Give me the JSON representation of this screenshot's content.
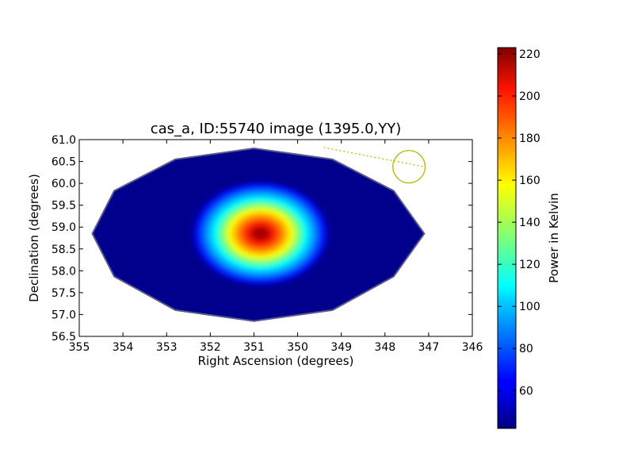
{
  "chart_data": {
    "type": "heatmap",
    "title": "cas_a, ID:55740 image (1395.0,YY)",
    "xlabel": "Right Ascension (degrees)",
    "ylabel": "Declination (degrees)",
    "xlim": [
      355,
      346
    ],
    "ylim": [
      56.5,
      61.0
    ],
    "xticks": [
      "355",
      "354",
      "353",
      "352",
      "351",
      "350",
      "349",
      "348",
      "347",
      "346"
    ],
    "yticks": [
      "56.5",
      "57.0",
      "57.5",
      "58.0",
      "58.5",
      "59.0",
      "59.5",
      "60.0",
      "60.5",
      "61.0"
    ],
    "xtick_values": [
      355,
      354,
      353,
      352,
      351,
      350,
      349,
      348,
      347,
      346
    ],
    "ytick_values": [
      56.5,
      57.0,
      57.5,
      58.0,
      58.5,
      59.0,
      59.5,
      60.0,
      60.5,
      61.0
    ],
    "grid": false,
    "colormap": "jet",
    "background_value": 45,
    "source": {
      "ra": 350.85,
      "dec": 58.85,
      "peak": 220
    },
    "footprint": [
      [
        354.7,
        58.85
      ],
      [
        354.2,
        59.83
      ],
      [
        352.8,
        60.55
      ],
      [
        351.0,
        60.8
      ],
      [
        349.2,
        60.55
      ],
      [
        347.8,
        59.83
      ],
      [
        347.1,
        58.85
      ],
      [
        347.8,
        57.87
      ],
      [
        349.2,
        57.1
      ],
      [
        351.0,
        56.85
      ],
      [
        352.8,
        57.1
      ],
      [
        354.2,
        57.87
      ]
    ],
    "annotation": {
      "circle_center": [
        347.45,
        60.38
      ],
      "circle_radius_deg": 0.37,
      "line_start": [
        349.4,
        60.82
      ],
      "line_end": [
        347.1,
        60.38
      ],
      "color": "#b5b500"
    },
    "colorbar": {
      "label": "Power in Kelvin",
      "range": [
        42,
        223
      ],
      "ticks": [
        "60",
        "80",
        "100",
        "120",
        "140",
        "160",
        "180",
        "200",
        "220"
      ],
      "tick_values": [
        60,
        80,
        100,
        120,
        140,
        160,
        180,
        200,
        220
      ]
    }
  }
}
